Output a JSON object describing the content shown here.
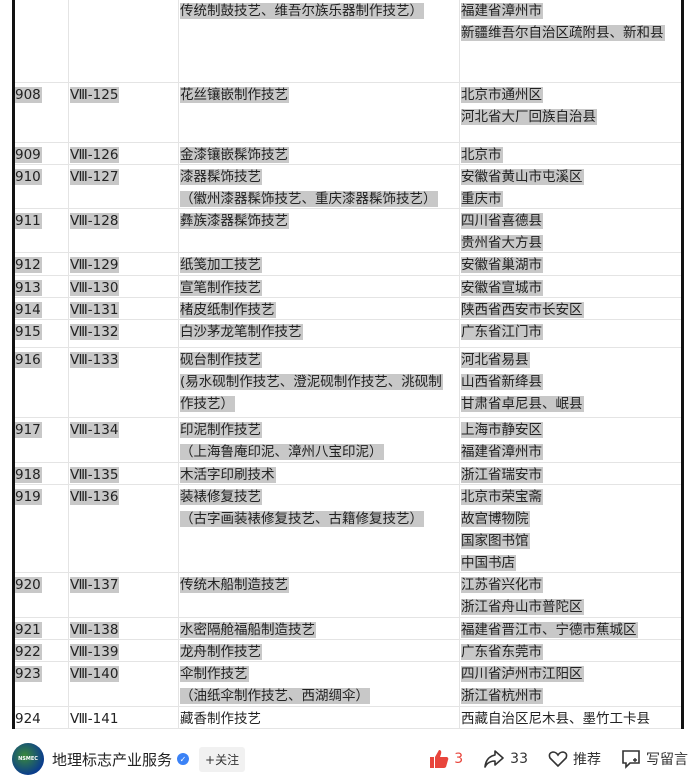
{
  "table": {
    "rows": [
      {
        "no": "",
        "code": "",
        "name": [
          "传统制鼓技艺、维吾尔族乐器制作技艺）"
        ],
        "loc": [
          "福建省漳州市",
          "新疆维吾尔自治区疏附县、新和县"
        ],
        "h": 84,
        "partial": true
      },
      {
        "no": "908",
        "code": "Ⅷ-125",
        "name": [
          "花丝镶嵌制作技艺"
        ],
        "loc": [
          "北京市通州区",
          "河北省大厂回族自治县"
        ],
        "h": 60
      },
      {
        "no": "909",
        "code": "Ⅷ-126",
        "name": [
          "金漆镶嵌髹饰技艺"
        ],
        "loc": [
          "北京市"
        ],
        "h": 22
      },
      {
        "no": "910",
        "code": "Ⅷ-127",
        "name": [
          "漆器髹饰技艺",
          "（徽州漆器髹饰技艺、重庆漆器髹饰技艺）"
        ],
        "loc": [
          "安徽省黄山市屯溪区",
          "重庆市"
        ],
        "h": 44
      },
      {
        "no": "911",
        "code": "Ⅷ-128",
        "name": [
          "彝族漆器髹饰技艺"
        ],
        "loc": [
          "四川省喜德县",
          "贵州省大方县"
        ],
        "h": 44
      },
      {
        "no": "912",
        "code": "Ⅷ-129",
        "name": [
          "纸笺加工技艺"
        ],
        "loc": [
          "安徽省巢湖市"
        ],
        "h": 23
      },
      {
        "no": "913",
        "code": "Ⅷ-130",
        "name": [
          "宣笔制作技艺"
        ],
        "loc": [
          "安徽省宣城市"
        ],
        "h": 22
      },
      {
        "no": "914",
        "code": "Ⅷ-131",
        "name": [
          "楮皮纸制作技艺"
        ],
        "loc": [
          "陕西省西安市长安区"
        ],
        "h": 22
      },
      {
        "no": "915",
        "code": "Ⅷ-132",
        "name": [
          "白沙茅龙笔制作技艺"
        ],
        "loc": [
          "广东省江门市"
        ],
        "h": 28
      },
      {
        "no": "916",
        "code": "Ⅷ-133",
        "name": [
          "砚台制作技艺",
          "(易水砚制作技艺、澄泥砚制作技艺、洮砚制",
          "作技艺）"
        ],
        "loc": [
          "河北省易县",
          "山西省新绛县",
          "甘肃省卓尼县、岷县"
        ],
        "h": 70
      },
      {
        "no": "917",
        "code": "Ⅷ-134",
        "name": [
          "印泥制作技艺",
          "（上海鲁庵印泥、漳州八宝印泥）"
        ],
        "loc": [
          "上海市静安区",
          "福建省漳州市"
        ],
        "h": 45
      },
      {
        "no": "918",
        "code": "Ⅷ-135",
        "name": [
          "木活字印刷技术"
        ],
        "loc": [
          "浙江省瑞安市"
        ],
        "h": 22
      },
      {
        "no": "919",
        "code": "Ⅷ-136",
        "name": [
          "装裱修复技艺",
          "（古字画装裱修复技艺、古籍修复技艺）"
        ],
        "loc": [
          "北京市荣宝斋",
          "故宫博物院",
          "国家图书馆",
          "中国书店"
        ],
        "h": 88
      },
      {
        "no": "920",
        "code": "Ⅷ-137",
        "name": [
          "传统木船制造技艺"
        ],
        "loc": [
          "江苏省兴化市",
          "浙江省舟山市普陀区"
        ],
        "h": 45
      },
      {
        "no": "921",
        "code": "Ⅷ-138",
        "name": [
          "水密隔舱福船制造技艺"
        ],
        "loc": [
          "福建省晋江市、宁德市蕉城区"
        ],
        "h": 22
      },
      {
        "no": "922",
        "code": "Ⅷ-139",
        "name": [
          "龙舟制作技艺"
        ],
        "loc": [
          "广东省东莞市"
        ],
        "h": 22
      },
      {
        "no": "923",
        "code": "Ⅷ-140",
        "name": [
          "伞制作技艺",
          "（油纸伞制作技艺、西湖绸伞）"
        ],
        "loc": [
          "四川省泸州市江阳区",
          "浙江省杭州市"
        ],
        "h": 45
      },
      {
        "no": "924",
        "code": "Ⅷ-141",
        "name": [
          "藏香制作技艺"
        ],
        "loc": [
          "西藏自治区尼木县、墨竹工卡县"
        ],
        "h": 22,
        "plain": true
      }
    ]
  },
  "footer": {
    "avatar_text": "NSMEC",
    "account": "地理标志产业服务",
    "follow": "+关注",
    "likes": "3",
    "shares": "33",
    "recommend": "推荐",
    "comment": "写留言",
    "like_color": "#e8453c"
  }
}
